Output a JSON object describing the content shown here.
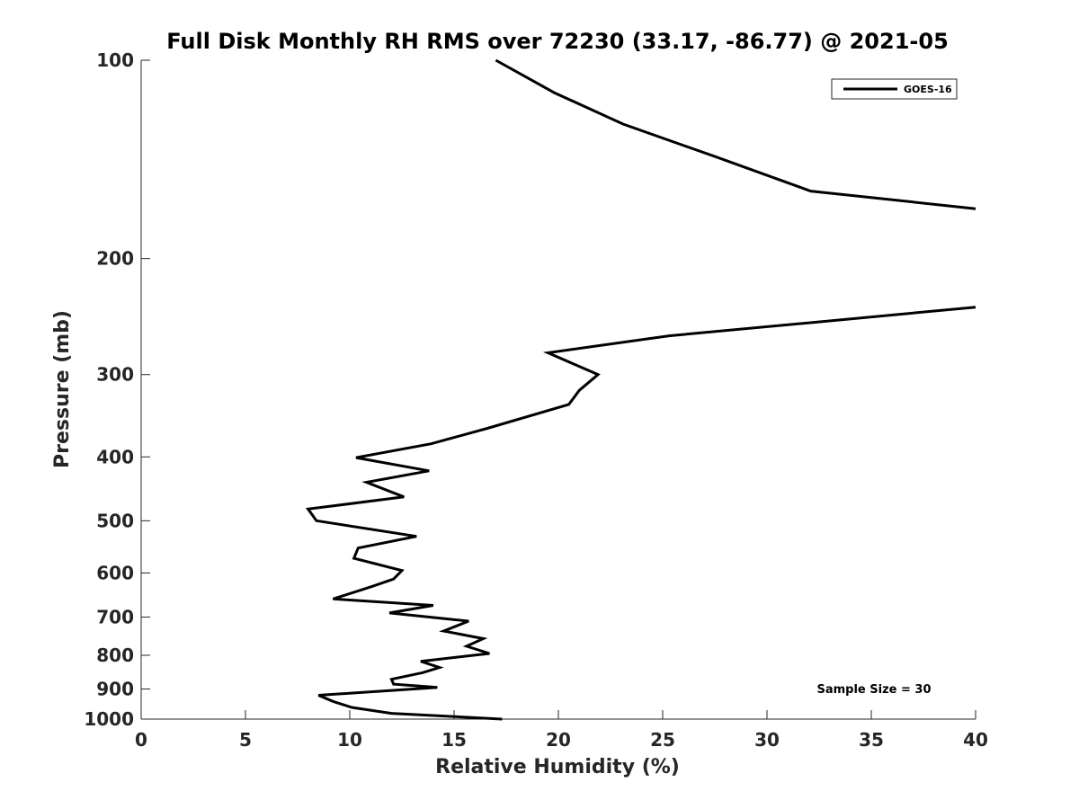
{
  "chart_data": {
    "type": "line",
    "title": "Full Disk Monthly RH RMS over 72230 (33.17, -86.77) @ 2021-05",
    "xlabel": "Relative Humidity (%)",
    "ylabel": "Pressure (mb)",
    "xlim": [
      0,
      40
    ],
    "ylim": [
      100,
      1000
    ],
    "yscale": "log",
    "yreversed": true,
    "grid": false,
    "legend_placement": "top-right",
    "x_ticks": [
      0,
      5,
      10,
      15,
      20,
      25,
      30,
      35,
      40
    ],
    "y_ticks": [
      100,
      200,
      300,
      400,
      500,
      600,
      700,
      800,
      900,
      1000
    ],
    "annotation": "Sample Size = 30",
    "line_color": "#000000",
    "series": [
      {
        "name": "GOES-16",
        "segments": [
          {
            "x": [
              17.0,
              19.8,
              23.1,
              27.5,
              32.1,
              40.0
            ],
            "y": [
              100,
              112,
              125,
              140,
              158,
              168
            ]
          },
          {
            "x": [
              40.0,
              32.2,
              25.3,
              19.5,
              21.9,
              21.0,
              20.5,
              16.6,
              13.9,
              10.3,
              13.8,
              10.8,
              12.6,
              8.0,
              8.4,
              13.2,
              10.4,
              10.2,
              12.5,
              12.1,
              11.0,
              9.2,
              14.0,
              11.9,
              15.7,
              14.5,
              16.4,
              15.6,
              16.7,
              13.4,
              14.3,
              13.5,
              12.0,
              12.1,
              14.2,
              8.5,
              9.2,
              10.1,
              12.0,
              17.3
            ],
            "y": [
              237,
              250,
              262,
              278,
              300,
              317,
              333,
              362,
              382,
              401,
              420,
              437,
              460,
              480,
              500,
              528,
              550,
              570,
              595,
              613,
              630,
              657,
              672,
              690,
              710,
              735,
              755,
              775,
              795,
              817,
              835,
              850,
              870,
              885,
              895,
              920,
              940,
              960,
              980,
              1000
            ]
          }
        ]
      }
    ]
  }
}
